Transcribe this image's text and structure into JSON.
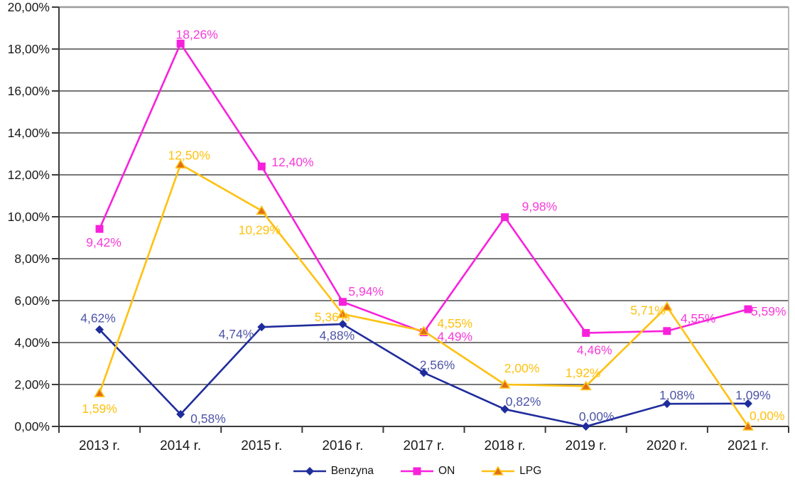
{
  "chart_data": {
    "type": "line",
    "title": "",
    "xlabel": "",
    "ylabel": "",
    "categories": [
      "2013 r.",
      "2014 r.",
      "2015 r.",
      "2016 r.",
      "2017 r.",
      "2018 r.",
      "2019 r.",
      "2020 r.",
      "2021 r."
    ],
    "series": [
      {
        "name": "Benzyna",
        "marker": "diamond",
        "line_color": "#1F2C9C",
        "marker_color": "#1F2C9C",
        "label_color": "#4D55A6",
        "values": [
          4.62,
          0.58,
          4.74,
          4.88,
          2.56,
          0.82,
          0.0,
          1.08,
          1.09
        ],
        "labels": [
          "4,62%",
          "0,58%",
          "4,74%",
          "4,88%",
          "2,56%",
          "0,82%",
          "0,00%",
          "1,08%",
          "1,09%"
        ],
        "label_offsets": [
          [
            -2,
            -10,
            "middle"
          ],
          [
            14,
            12,
            "start"
          ],
          [
            -11,
            16,
            "end"
          ],
          [
            -8,
            22,
            "middle"
          ],
          [
            19,
            -5,
            "middle"
          ],
          [
            26,
            -5,
            "middle"
          ],
          [
            15,
            -8,
            "middle"
          ],
          [
            14,
            -6,
            "middle"
          ],
          [
            7,
            -6,
            "middle"
          ]
        ]
      },
      {
        "name": "ON",
        "marker": "square",
        "line_color": "#F821DB",
        "marker_color": "#F821DB",
        "label_color": "#F83BD9",
        "values": [
          9.42,
          18.26,
          12.4,
          5.94,
          4.49,
          9.98,
          4.46,
          4.55,
          5.59
        ],
        "labels": [
          "9,42%",
          "18,26%",
          "12,40%",
          "5,94%",
          "4,49%",
          "9,98%",
          "4,46%",
          "4,55%",
          "5,59%"
        ],
        "label_offsets": [
          [
            6,
            25,
            "middle"
          ],
          [
            23,
            -7,
            "middle"
          ],
          [
            14,
            0,
            "start"
          ],
          [
            8,
            -9,
            "start"
          ],
          [
            19,
            12,
            "start"
          ],
          [
            24,
            -9,
            "start"
          ],
          [
            12,
            30,
            "middle"
          ],
          [
            19,
            -12,
            "start"
          ],
          [
            4,
            9,
            "start"
          ]
        ]
      },
      {
        "name": "LPG",
        "marker": "triangle",
        "line_color": "#FFC010",
        "marker_color": "#E06D1A",
        "marker_stroke": "#FFC010",
        "label_color": "#FFC10E",
        "values": [
          1.59,
          12.5,
          10.29,
          5.36,
          4.55,
          2.0,
          1.92,
          5.71,
          0.0
        ],
        "labels": [
          "1,59%",
          "12,50%",
          "10,29%",
          "5,36%",
          "4,55%",
          "2,00%",
          "1,92%",
          "5,71%",
          "0,00%"
        ],
        "label_offsets": [
          [
            0,
            28,
            "middle"
          ],
          [
            12,
            -7,
            "middle"
          ],
          [
            -3,
            33,
            "middle"
          ],
          [
            10,
            10,
            "end"
          ],
          [
            19,
            -5,
            "start"
          ],
          [
            24,
            -17,
            "middle"
          ],
          [
            -4,
            -13,
            "middle"
          ],
          [
            -2,
            11,
            "end"
          ],
          [
            2,
            -9,
            "start"
          ]
        ]
      }
    ],
    "y_axis": {
      "min": 0,
      "max": 20,
      "step": 2,
      "tick_labels_top_to_bottom": [
        "20,00%",
        "18,00%",
        "16,00%",
        "14,00%",
        "12,00%",
        "10,00%",
        "8,00%",
        "6,00%",
        "4,00%",
        "2,00%",
        "0,00%"
      ]
    },
    "grid": true,
    "legend_position": "bottom",
    "colors": {
      "gridline": "#4a4a4a",
      "axis": "#3a3a3a",
      "plot_border": "#9b9b9b",
      "tick_text": "#1a1a1a",
      "background": "#ffffff"
    }
  }
}
